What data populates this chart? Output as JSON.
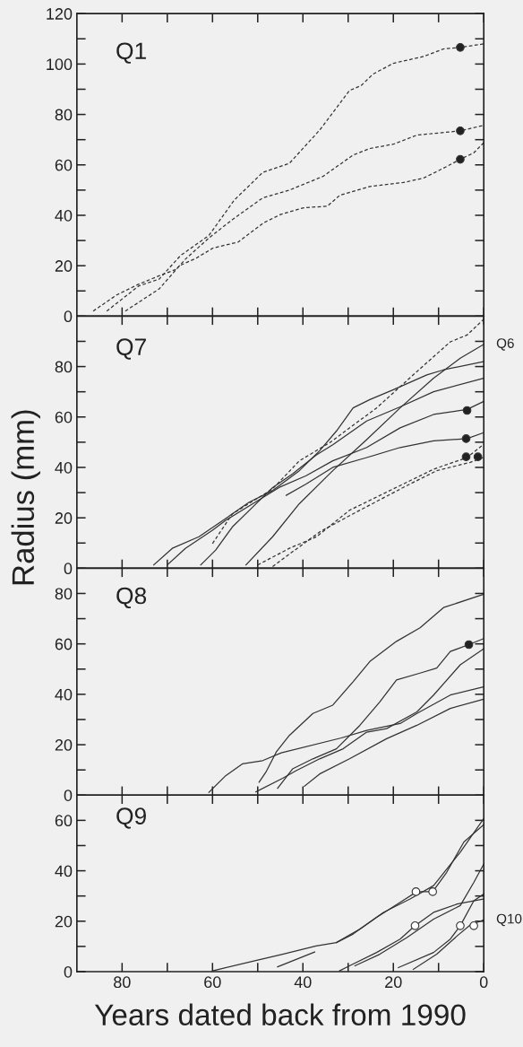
{
  "chart_data": [
    {
      "type": "line",
      "title": "Q1",
      "xlim": [
        90,
        0
      ],
      "ylim": [
        0,
        120
      ],
      "xticks": [
        {
          "value": 80,
          "label": null
        },
        {
          "value": 70,
          "label": null
        },
        {
          "value": 60,
          "label": null
        },
        {
          "value": 50,
          "label": null
        },
        {
          "value": 40,
          "label": null
        },
        {
          "value": 30,
          "label": null
        },
        {
          "value": 20,
          "label": null
        },
        {
          "value": 10,
          "label": null
        },
        {
          "value": 0,
          "label": null
        }
      ],
      "yticks": [
        0,
        {
          "value": 10,
          "label": null
        },
        20,
        {
          "value": 30,
          "label": null
        },
        40,
        {
          "value": 50,
          "label": null
        },
        60,
        {
          "value": 70,
          "label": null
        },
        80,
        {
          "value": 90,
          "label": null
        },
        100,
        {
          "value": 110,
          "label": null
        },
        120
      ],
      "tick_labels": "y",
      "series": [
        {
          "type": "line",
          "line_style": "dashed",
          "color": "#333333",
          "x": [
            83.4,
            76.3,
            71.8,
            67.1,
            60.8,
            55.2,
            48.9,
            43,
            36.3,
            29.7,
            27.1,
            24.5,
            20,
            13.3,
            8.9,
            5.2,
            0
          ],
          "values": [
            2,
            12,
            14.7,
            24,
            32,
            46,
            57,
            60.6,
            73.8,
            89.5,
            91.5,
            96,
            100.3,
            103,
            106,
            106.6,
            108
          ]
        },
        {
          "type": "line",
          "line_style": "dashed",
          "color": "#333333",
          "x": [
            86.4,
            81.2,
            76.3,
            71.8,
            68,
            66,
            60.8,
            55.6,
            48.9,
            43,
            35.6,
            28.9,
            25.2,
            20,
            14.8,
            5.2,
            0
          ],
          "values": [
            2,
            8.4,
            12.7,
            16,
            18.6,
            22.6,
            31,
            38.3,
            46.9,
            50,
            55.4,
            63.9,
            66.5,
            68.2,
            71.8,
            73.5,
            75.7
          ]
        },
        {
          "type": "line",
          "line_style": "dashed",
          "color": "#333333",
          "x": [
            79.3,
            71.8,
            67.3,
            63.6,
            59.9,
            54.3,
            48.7,
            45,
            39.8,
            34.6,
            31.8,
            25.2,
            17.8,
            13.4,
            8.9,
            5.2,
            2.2,
            0
          ],
          "values": [
            2,
            10.8,
            20,
            23,
            27,
            29.4,
            37,
            40.3,
            43,
            43.6,
            48,
            51.4,
            53,
            54.7,
            58.7,
            62.2,
            64.8,
            68.8
          ]
        },
        {
          "type": "scatter",
          "marker": "circle",
          "color": "#222222",
          "x": [
            5.2,
            5.2,
            5.2
          ],
          "values": [
            106.6,
            73.5,
            62.2
          ]
        }
      ]
    },
    {
      "type": "line",
      "title": "Q7",
      "xlim": [
        90,
        0
      ],
      "ylim": [
        0,
        100
      ],
      "ylabel": "Radius (mm)",
      "xticks": [
        {
          "value": 80,
          "label": null
        },
        {
          "value": 70,
          "label": null
        },
        {
          "value": 60,
          "label": null
        },
        {
          "value": 50,
          "label": null
        },
        {
          "value": 40,
          "label": null
        },
        {
          "value": 30,
          "label": null
        },
        {
          "value": 20,
          "label": null
        },
        {
          "value": 10,
          "label": null
        },
        {
          "value": 0,
          "label": null
        }
      ],
      "yticks": [
        0,
        {
          "value": 10,
          "label": null
        },
        20,
        {
          "value": 30,
          "label": null
        },
        40,
        {
          "value": 50,
          "label": null
        },
        60,
        {
          "value": 70,
          "label": null
        },
        80,
        {
          "value": 90,
          "label": null
        }
      ],
      "tick_labels": "y",
      "annotations": [
        {
          "text": "Q6",
          "x": 0,
          "y": 88.8
        }
      ],
      "series": [
        {
          "type": "line",
          "line_style": "dashed",
          "color": "#333333",
          "x": [
            60,
            55.6,
            46.7,
            40.8,
            34.1,
            23.7,
            14.8,
            7.4,
            3.7,
            0
          ],
          "values": [
            9.8,
            21.6,
            31.5,
            42.6,
            49.8,
            63.6,
            78,
            89.8,
            92.5,
            98.8
          ]
        },
        {
          "type": "line",
          "line_style": "dashed",
          "color": "#333333",
          "x": [
            50,
            43,
            37,
            29.7,
            18.5,
            11.1,
            3.7,
            0
          ],
          "values": [
            1.3,
            7.9,
            12.5,
            23,
            32.8,
            39.3,
            43.9,
            49.2
          ]
        },
        {
          "type": "line",
          "line_style": "dashed",
          "color": "#333333",
          "x": [
            46.7,
            40.8,
            36.3,
            28.9,
            17,
            10.4,
            3,
            0
          ],
          "values": [
            0.7,
            8.5,
            14.4,
            21.6,
            32.8,
            38.7,
            42,
            44
          ]
        },
        {
          "type": "line",
          "line_style": "solid",
          "color": "#333333",
          "x": [
            52.6,
            46.7,
            40.8,
            33.4,
            25.9,
            18.5,
            11.1,
            5.2,
            0
          ],
          "values": [
            1.3,
            12.5,
            25.6,
            38.7,
            51,
            63.6,
            75.4,
            83.3,
            88.8
          ]
        },
        {
          "type": "line",
          "line_style": "solid",
          "color": "#333333",
          "x": [
            62.6,
            59.3,
            55.6,
            51.1,
            46.7,
            42.3,
            37,
            33.4,
            25.9,
            18.5,
            11.1,
            0
          ],
          "values": [
            1.3,
            7.2,
            16.4,
            24.3,
            32,
            37.4,
            45,
            49,
            58.4,
            64,
            70,
            75.4
          ]
        },
        {
          "type": "line",
          "line_style": "solid",
          "color": "#333333",
          "x": [
            73,
            68.9,
            63,
            57.1,
            51.9,
            46.7,
            40.8,
            36.3,
            32.6,
            28.9,
            25.2,
            20,
            12.6,
            8.9,
            0
          ],
          "values": [
            1.3,
            7.9,
            12.5,
            19.7,
            26.2,
            30.8,
            38.7,
            46.6,
            54.4,
            63.6,
            66.9,
            70.8,
            76.7,
            78.7,
            82
          ]
        },
        {
          "type": "line",
          "line_style": "solid",
          "color": "#333333",
          "x": [
            70,
            66,
            60,
            57.1,
            51.1,
            45.2,
            39.3,
            33.4,
            25.9,
            18.5,
            11.1,
            3.7,
            0
          ],
          "values": [
            1.3,
            7.9,
            15.1,
            19,
            25.6,
            32.1,
            36.7,
            42.6,
            47.9,
            55.7,
            61,
            63,
            66.2
          ]
        },
        {
          "type": "line",
          "line_style": "solid",
          "color": "#333333",
          "x": [
            43.7,
            39.3,
            33.4,
            25.9,
            18.5,
            11.1,
            3.7,
            0
          ],
          "values": [
            28.9,
            33.4,
            40,
            43.9,
            47.9,
            50.5,
            51.4,
            53.8
          ]
        },
        {
          "type": "scatter",
          "marker": "circle",
          "color": "#222222",
          "x": [
            3.7,
            3.9,
            3.9,
            1.3
          ],
          "values": [
            62.6,
            51.4,
            44.2,
            44.2
          ]
        }
      ]
    },
    {
      "type": "line",
      "title": "Q8",
      "xlim": [
        90,
        0
      ],
      "ylim": [
        0,
        90
      ],
      "xticks": [
        {
          "value": 80,
          "label": null
        },
        {
          "value": 70,
          "label": null
        },
        {
          "value": 60,
          "label": null
        },
        {
          "value": 50,
          "label": null
        },
        {
          "value": 40,
          "label": null
        },
        {
          "value": 30,
          "label": null
        },
        {
          "value": 20,
          "label": null
        },
        {
          "value": 10,
          "label": null
        },
        {
          "value": 0,
          "label": null
        }
      ],
      "yticks": [
        0,
        {
          "value": 10,
          "label": null
        },
        20,
        {
          "value": 30,
          "label": null
        },
        40,
        {
          "value": 50,
          "label": null
        },
        60,
        {
          "value": 70,
          "label": null
        },
        80
      ],
      "tick_labels": "y",
      "series": [
        {
          "type": "line",
          "line_style": "solid",
          "color": "#333333",
          "x": [
            60.8,
            57.1,
            53.4,
            48.9,
            44.8,
            31.5,
            25.9,
            18.5,
            14.8,
            7.4,
            0
          ],
          "values": [
            1.1,
            7.7,
            12.4,
            13.7,
            16.8,
            22.7,
            25.7,
            28.4,
            32.4,
            39.7,
            43
          ]
        },
        {
          "type": "line",
          "line_style": "solid",
          "color": "#333333",
          "x": [
            49.7,
            48.2,
            45.9,
            43,
            37.8,
            33.4,
            28.9,
            25.2,
            19.3,
            14.1,
            8.9,
            0
          ],
          "values": [
            5.1,
            9.1,
            17.1,
            23.7,
            32.4,
            35.7,
            45,
            53,
            61,
            66.4,
            74.4,
            79.7
          ]
        },
        {
          "type": "line",
          "line_style": "solid",
          "color": "#333333",
          "x": [
            45.6,
            42.3,
            37.8,
            32.6,
            27.4,
            23,
            19.3,
            14.1,
            10.4,
            7.4,
            3.3,
            0
          ],
          "values": [
            2.7,
            10.4,
            14.4,
            18.4,
            27.7,
            37,
            45.7,
            48.4,
            50.4,
            57,
            59.7,
            62.1
          ]
        },
        {
          "type": "line",
          "line_style": "solid",
          "color": "#333333",
          "x": [
            50.4,
            44.5,
            41.5,
            36.3,
            31.1,
            25.9,
            21.5,
            14.8,
            11.1,
            5.2,
            0
          ],
          "values": [
            1.3,
            6.7,
            9.7,
            14.4,
            18.4,
            25,
            26.4,
            33,
            39.7,
            51.7,
            58.1
          ]
        },
        {
          "type": "line",
          "line_style": "solid",
          "color": "#333333",
          "x": [
            39.7,
            36.3,
            29.7,
            21.5,
            14.8,
            7.4,
            0
          ],
          "values": [
            3.5,
            8.4,
            14.4,
            22.4,
            27.7,
            34.4,
            38.1
          ]
        },
        {
          "type": "scatter",
          "marker": "circle",
          "color": "#222222",
          "x": [
            3.3
          ],
          "values": [
            59.7
          ]
        }
      ]
    },
    {
      "type": "line",
      "title": "Q9",
      "xlim": [
        90,
        0
      ],
      "ylim": [
        0,
        70
      ],
      "xlabel": "Years dated back from 1990",
      "xticks": [
        {
          "value": 80,
          "label": "80"
        },
        {
          "value": 70,
          "label": null
        },
        {
          "value": 60,
          "label": "60"
        },
        {
          "value": 50,
          "label": null
        },
        {
          "value": 40,
          "label": "40"
        },
        {
          "value": 30,
          "label": null
        },
        {
          "value": 20,
          "label": "20"
        },
        {
          "value": 10,
          "label": null
        },
        {
          "value": 0,
          "label": "0"
        }
      ],
      "yticks": [
        0,
        {
          "value": 10,
          "label": null
        },
        20,
        {
          "value": 30,
          "label": null
        },
        40,
        {
          "value": 50,
          "label": null
        },
        60
      ],
      "annotations": [
        {
          "text": "Q10",
          "x": 0,
          "y": 20.5
        }
      ],
      "series": [
        {
          "type": "line",
          "line_style": "solid",
          "color": "#333333",
          "x": [
            60,
            51.9,
            44.5,
            37.1,
            32.6,
            27.4,
            22.2,
            16.3,
            11.1,
            5.2,
            0
          ],
          "values": [
            0.3,
            3.8,
            6.9,
            10.2,
            11.5,
            16.9,
            23.5,
            28.8,
            34.1,
            47.4,
            60.7
          ]
        },
        {
          "type": "line",
          "line_style": "solid",
          "color": "#333333",
          "x": [
            45.6,
            37.4
          ],
          "values": [
            1.9,
            7.8
          ]
        },
        {
          "type": "line",
          "line_style": "solid",
          "color": "#333333",
          "x": [
            32.6,
            28.9,
            23.7,
            18.5,
            14.8,
            11.3,
            8.2,
            4.4,
            0
          ],
          "values": [
            11.5,
            14.9,
            21.5,
            27.5,
            31.7,
            31.7,
            39.4,
            51.4,
            58.3
          ]
        },
        {
          "type": "line",
          "line_style": "solid",
          "color": "#333333",
          "x": [
            31.9,
            29.7,
            23.7,
            18.5,
            15.2,
            11.1,
            5.9,
            0
          ],
          "values": [
            0.3,
            2.3,
            7.6,
            12.9,
            18.2,
            23.5,
            26.8,
            28.8
          ]
        },
        {
          "type": "line",
          "line_style": "solid",
          "color": "#333333",
          "x": [
            28.5,
            23,
            17,
            11.1,
            5.2,
            2.2,
            0
          ],
          "values": [
            2.3,
            6.9,
            13.5,
            20.8,
            26.2,
            35.4,
            42.7
          ]
        },
        {
          "type": "line",
          "line_style": "solid",
          "color": "#333333",
          "x": [
            18.9,
            11.1,
            7.4,
            5.2,
            2.2,
            0
          ],
          "values": [
            1.6,
            7.6,
            12.9,
            18.2,
            28.1,
            30.8
          ]
        },
        {
          "type": "line",
          "line_style": "solid",
          "color": "#333333",
          "x": [
            15.6,
            10.4,
            6,
            3,
            0
          ],
          "values": [
            0.9,
            6.9,
            14,
            18.5,
            20.5
          ]
        },
        {
          "type": "scatter",
          "marker": "circle",
          "color": "#ffffff",
          "x": [
            15,
            11.3,
            15.2,
            5.2,
            2.2
          ],
          "values": [
            31.7,
            31.7,
            18.2,
            18.2,
            18.2
          ]
        }
      ]
    }
  ]
}
